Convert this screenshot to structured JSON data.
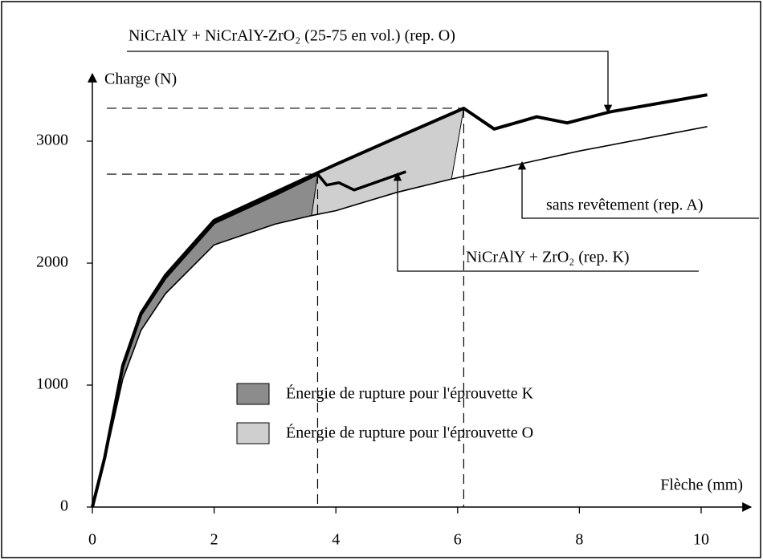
{
  "chart_data": {
    "type": "line",
    "y_label": "Charge (N)",
    "x_label": "Flèche (mm)",
    "xlim": [
      0,
      10.8
    ],
    "ylim": [
      0,
      3530
    ],
    "xticks": [
      0,
      2,
      4,
      6,
      8,
      10
    ],
    "yticks": [
      0,
      1000,
      2000,
      3000
    ],
    "series": [
      {
        "name": "NiCrAlY + NiCrAlY-ZrO₂ (25-75 en vol.) (rep. O)",
        "color": "#000000",
        "x": [
          0,
          0.2,
          0.5,
          0.8,
          1.2,
          2,
          3,
          4,
          5,
          6.1,
          6.6,
          7.3,
          7.8,
          8.5,
          10.1
        ],
        "values": [
          0,
          400,
          1160,
          1590,
          1900,
          2350,
          2580,
          2810,
          3030,
          3270,
          3100,
          3200,
          3150,
          3240,
          3380
        ]
      },
      {
        "name": "NiCrAlY + ZrO₂ (rep. K)",
        "color": "#000000",
        "x": [
          0,
          0.2,
          0.5,
          0.8,
          1.2,
          2,
          3,
          3.7,
          3.85,
          4.05,
          4.3,
          5.15
        ],
        "values": [
          0,
          400,
          1150,
          1580,
          1880,
          2330,
          2560,
          2730,
          2640,
          2660,
          2600,
          2750
        ]
      },
      {
        "name": "sans revêtement (rep. A)",
        "color": "#000000",
        "x": [
          0,
          0.2,
          0.5,
          0.8,
          1.2,
          2,
          3,
          3.6,
          4,
          5,
          5.9,
          7,
          8,
          10.1
        ],
        "values": [
          0,
          380,
          1050,
          1450,
          1750,
          2150,
          2320,
          2390,
          2430,
          2580,
          2690,
          2810,
          2920,
          3120
        ]
      }
    ],
    "areas": [
      {
        "name": "Énergie de rupture pour l'éprouvette K",
        "color": "#8c8c8c"
      },
      {
        "name": "Énergie de rupture pour l'éprouvette O",
        "color": "#cfcfcf"
      }
    ]
  }
}
